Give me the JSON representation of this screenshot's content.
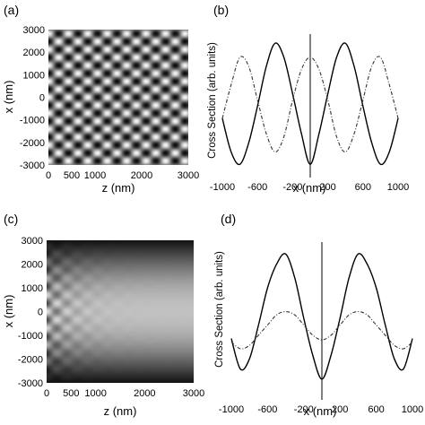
{
  "panels": {
    "a": {
      "label": "(a)",
      "xlabel": "z (nm)",
      "ylabel": "x (nm)"
    },
    "b": {
      "label": "(b)",
      "xlabel": "x (nm)",
      "ylabel": "Cross Section (arb. units)"
    },
    "c": {
      "label": "(c)",
      "xlabel": "z (nm)",
      "ylabel": "x (nm)"
    },
    "d": {
      "label": "(d)",
      "xlabel": "x (nm)",
      "ylabel": "Cross Section (arb. units)"
    }
  },
  "chart_data": [
    {
      "panel": "a",
      "type": "heatmap",
      "colormap": "grayscale",
      "xlabel": "z (nm)",
      "ylabel": "x (nm)",
      "xlim": [
        0,
        3000
      ],
      "ylim": [
        -3000,
        3000
      ],
      "x_ticks": [
        "0",
        "500",
        "1000",
        "2000",
        "3000"
      ],
      "x_tick_values": [
        0,
        500,
        1000,
        2000,
        3000
      ],
      "y_ticks": [
        "3000",
        "2000",
        "1000",
        "0",
        "-1000",
        "-2000",
        "-3000"
      ],
      "y_tick_values": [
        3000,
        2000,
        1000,
        0,
        -1000,
        -2000,
        -3000
      ],
      "pattern": {
        "x_period_nm": 710,
        "z_period_nm": 420,
        "decay": "none"
      }
    },
    {
      "panel": "b",
      "type": "line",
      "xlabel": "x (nm)",
      "ylabel": "Cross Section (arb. units)",
      "xlim": [
        -1000,
        1000
      ],
      "ylim": [
        -1.1,
        1.1
      ],
      "x_ticks": [
        "-1000",
        "-600",
        "-200",
        "200",
        "600",
        "1000"
      ],
      "x_tick_values": [
        -1000,
        -600,
        -200,
        200,
        600,
        1000
      ],
      "vline_x": 0,
      "series": [
        {
          "style": "solid",
          "x": [
            -1000,
            -900,
            -800,
            -700,
            -600,
            -500,
            -400,
            -300,
            -200,
            -100,
            0,
            100,
            200,
            300,
            400,
            500,
            600,
            700,
            800,
            900,
            1000
          ],
          "values": [
            -0.25,
            -0.8,
            -1.0,
            -0.65,
            -0.05,
            0.6,
            0.98,
            0.75,
            0.15,
            -0.5,
            -1.0,
            -0.5,
            0.15,
            0.75,
            0.98,
            0.6,
            -0.05,
            -0.65,
            -1.0,
            -0.8,
            -0.25
          ]
        },
        {
          "style": "dash-dot",
          "x": [
            -1000,
            -900,
            -800,
            -700,
            -600,
            -500,
            -400,
            -300,
            -200,
            -100,
            0,
            100,
            200,
            300,
            400,
            500,
            600,
            700,
            800,
            900,
            1000
          ],
          "values": [
            -0.25,
            0.3,
            0.75,
            0.6,
            0.05,
            -0.5,
            -0.8,
            -0.55,
            0.05,
            0.55,
            0.75,
            0.55,
            0.05,
            -0.55,
            -0.8,
            -0.5,
            0.05,
            0.6,
            0.75,
            0.3,
            -0.25
          ]
        }
      ]
    },
    {
      "panel": "c",
      "type": "heatmap",
      "colormap": "grayscale",
      "xlabel": "z (nm)",
      "ylabel": "x (nm)",
      "xlim": [
        0,
        3000
      ],
      "ylim": [
        -3000,
        3000
      ],
      "x_ticks": [
        "0",
        "500",
        "1000",
        "2000",
        "3000"
      ],
      "x_tick_values": [
        0,
        500,
        1000,
        2000,
        3000
      ],
      "y_ticks": [
        "3000",
        "2000",
        "1000",
        "0",
        "-1000",
        "-2000",
        "-3000"
      ],
      "y_tick_values": [
        3000,
        2000,
        1000,
        0,
        -1000,
        -2000,
        -3000
      ],
      "pattern": {
        "x_period_nm": 710,
        "z_period_nm": 420,
        "decay": "interference fades with z; envelope bright at x=0, dark at |x|=3000"
      }
    },
    {
      "panel": "d",
      "type": "line",
      "xlabel": "x (nm)",
      "ylabel": "Cross Section (arb. units)",
      "xlim": [
        -1000,
        1000
      ],
      "ylim": [
        -1.1,
        1.1
      ],
      "x_ticks": [
        "-1000",
        "-600",
        "-200",
        "200",
        "600",
        "1000"
      ],
      "x_tick_values": [
        -1000,
        -600,
        -200,
        200,
        600,
        1000
      ],
      "vline_x": 0,
      "series": [
        {
          "style": "solid",
          "x": [
            -1000,
            -900,
            -800,
            -700,
            -600,
            -500,
            -400,
            -300,
            -200,
            -100,
            0,
            100,
            200,
            300,
            400,
            500,
            600,
            700,
            800,
            900,
            1000
          ],
          "values": [
            -0.3,
            -0.75,
            -0.6,
            -0.1,
            0.45,
            0.8,
            0.95,
            0.6,
            0.0,
            -0.55,
            -0.9,
            -0.55,
            0.0,
            0.6,
            0.95,
            0.8,
            0.45,
            -0.1,
            -0.6,
            -0.75,
            -0.3
          ]
        },
        {
          "style": "dash-dot",
          "x": [
            -1000,
            -900,
            -800,
            -700,
            -600,
            -500,
            -400,
            -300,
            -200,
            -100,
            0,
            100,
            200,
            300,
            400,
            500,
            600,
            700,
            800,
            900,
            1000
          ],
          "values": [
            -0.35,
            -0.45,
            -0.4,
            -0.25,
            -0.1,
            0.05,
            0.1,
            0.05,
            -0.1,
            -0.25,
            -0.32,
            -0.25,
            -0.1,
            0.05,
            0.1,
            0.05,
            -0.1,
            -0.25,
            -0.4,
            -0.45,
            -0.35
          ]
        }
      ]
    }
  ]
}
